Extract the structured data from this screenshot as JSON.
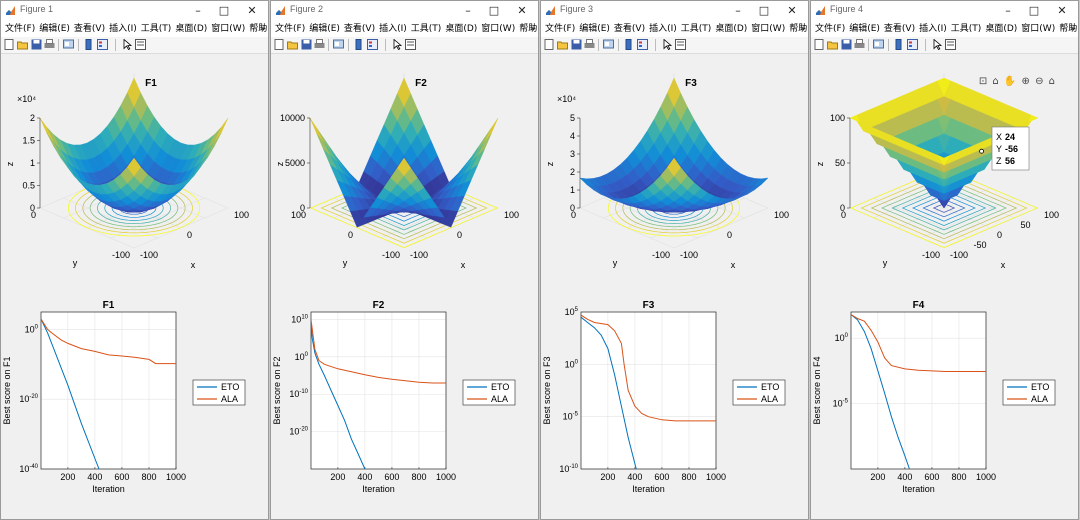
{
  "windows": [
    {
      "title": "Figure 1",
      "left": 0
    },
    {
      "title": "Figure 2",
      "left": 270
    },
    {
      "title": "Figure 3",
      "left": 540
    },
    {
      "title": "Figure 4",
      "left": 810
    }
  ],
  "menu": [
    "文件(F)",
    "编辑(E)",
    "查看(V)",
    "插入(I)",
    "工具(T)",
    "桌面(D)",
    "窗口(W)",
    "帮助(H)"
  ],
  "menu_more": "»",
  "window_buttons": {
    "minimize": "–",
    "maximize": "□",
    "close": "✕"
  },
  "figures": [
    {
      "id": "F1",
      "surface": {
        "title": "F1",
        "xlabel": "x",
        "ylabel": "y",
        "zlabel": "z",
        "zexp": "×10⁴",
        "zticks": [
          "0",
          "0.5",
          "1",
          "1.5",
          "2"
        ],
        "xticks": [
          "-100",
          "0",
          "100"
        ],
        "yticks": [
          "-100",
          "0"
        ]
      },
      "convergence": {
        "title": "F1",
        "xlabel": "Iteration",
        "ylabel": "Best score on F1",
        "xticks": [
          "200",
          "400",
          "600",
          "800",
          "1000"
        ],
        "yticks": [
          {
            "b": "10",
            "e": "0"
          },
          {
            "b": "10",
            "e": "-20"
          },
          {
            "b": "10",
            "e": "-40"
          }
        ]
      }
    },
    {
      "id": "F2",
      "surface": {
        "title": "F2",
        "xlabel": "x",
        "ylabel": "y",
        "zlabel": "z",
        "zexp": "",
        "zticks": [
          "0",
          "5000",
          "10000"
        ],
        "xticks": [
          "-100",
          "0",
          "100"
        ],
        "yticks": [
          "-100",
          "0",
          "100"
        ]
      },
      "convergence": {
        "title": "F2",
        "xlabel": "Iteration",
        "ylabel": "Best score on F2",
        "xticks": [
          "200",
          "400",
          "600",
          "800",
          "1000"
        ],
        "yticks": [
          {
            "b": "10",
            "e": "10"
          },
          {
            "b": "10",
            "e": "0"
          },
          {
            "b": "10",
            "e": "-10"
          },
          {
            "b": "10",
            "e": "-20"
          }
        ]
      }
    },
    {
      "id": "F3",
      "surface": {
        "title": "F3",
        "xlabel": "x",
        "ylabel": "y",
        "zlabel": "z",
        "zexp": "×10⁴",
        "zticks": [
          "0",
          "1",
          "2",
          "3",
          "4",
          "5"
        ],
        "xticks": [
          "-100",
          "0",
          "100"
        ],
        "yticks": [
          "-100",
          "0"
        ]
      },
      "convergence": {
        "title": "F3",
        "xlabel": "Iteration",
        "ylabel": "Best score on F3",
        "xticks": [
          "200",
          "400",
          "600",
          "800",
          "1000"
        ],
        "yticks": [
          {
            "b": "10",
            "e": "5"
          },
          {
            "b": "10",
            "e": "0"
          },
          {
            "b": "10",
            "e": "-5"
          },
          {
            "b": "10",
            "e": "-10"
          }
        ]
      }
    },
    {
      "id": "F4",
      "surface": {
        "title": "",
        "xlabel": "x",
        "ylabel": "y",
        "zlabel": "z",
        "zexp": "",
        "zticks": [
          "0",
          "50",
          "100"
        ],
        "xticks": [
          "-100",
          "-50",
          "0",
          "50",
          "100"
        ],
        "yticks": [
          "-100",
          "0"
        ]
      },
      "datatip": {
        "x_label": "X",
        "x_value": "24",
        "y_label": "Y",
        "y_value": "-56",
        "z_label": "Z",
        "z_value": "56"
      },
      "axes_toolbar": "⊡ ⌂ ✋ ⊕ ⊖ ⌂",
      "convergence": {
        "title": "F4",
        "xlabel": "Iteration",
        "ylabel": "Best score on F4",
        "xticks": [
          "200",
          "400",
          "600",
          "800",
          "1000"
        ],
        "yticks": [
          {
            "b": "10",
            "e": "0"
          },
          {
            "b": "10",
            "e": "-5"
          }
        ]
      }
    }
  ],
  "legend": [
    "ETO",
    "ALA"
  ],
  "colors": {
    "eto": "#0072BD",
    "ala": "#D95319",
    "grid": "#e3e3e3"
  },
  "chart_data": [
    {
      "type": "line",
      "title": "F1",
      "xlabel": "Iteration",
      "ylabel": "Best score on F1",
      "yscale": "log",
      "xlim": [
        1,
        1000
      ],
      "ylim_exp": [
        -40,
        5
      ],
      "series": [
        {
          "name": "ETO",
          "x": [
            1,
            50,
            100,
            200,
            300,
            400,
            450
          ],
          "y_exp": [
            3,
            -1,
            -6,
            -16,
            -27,
            -37,
            -42
          ]
        },
        {
          "name": "ALA",
          "x": [
            1,
            50,
            80,
            150,
            200,
            300,
            400,
            500,
            600,
            700,
            800,
            850,
            1000
          ],
          "y_exp": [
            3,
            0,
            -1,
            -3,
            -4,
            -5.5,
            -6.3,
            -7.3,
            -7.6,
            -8,
            -8.6,
            -9.8,
            -9.8
          ]
        }
      ]
    },
    {
      "type": "line",
      "title": "F2",
      "xlabel": "Iteration",
      "ylabel": "Best score on F2",
      "yscale": "log",
      "xlim": [
        1,
        1000
      ],
      "ylim_exp": [
        -30,
        12
      ],
      "series": [
        {
          "name": "ETO",
          "x": [
            1,
            10,
            30,
            60,
            100,
            150,
            200,
            250,
            300,
            350,
            400,
            450
          ],
          "y_exp": [
            9,
            5,
            1,
            -2,
            -5,
            -9,
            -13,
            -17,
            -22,
            -26,
            -30,
            -33
          ]
        },
        {
          "name": "ALA",
          "x": [
            1,
            30,
            60,
            100,
            200,
            300,
            400,
            500,
            600,
            700,
            800,
            900,
            1000
          ],
          "y_exp": [
            10,
            2,
            -1,
            -2,
            -3.2,
            -4,
            -4.8,
            -5.5,
            -6,
            -6.4,
            -6.8,
            -7,
            -7
          ]
        }
      ]
    },
    {
      "type": "line",
      "title": "F3",
      "xlabel": "Iteration",
      "ylabel": "Best score on F3",
      "yscale": "log",
      "xlim": [
        1,
        1000
      ],
      "ylim_exp": [
        -10,
        5
      ],
      "series": [
        {
          "name": "ETO",
          "x": [
            1,
            50,
            100,
            150,
            200,
            250,
            300,
            350,
            400,
            430
          ],
          "y_exp": [
            4.5,
            4,
            3.5,
            2.8,
            1.5,
            -1,
            -4,
            -7,
            -9.5,
            -11
          ]
        },
        {
          "name": "ALA",
          "x": [
            1,
            50,
            100,
            200,
            250,
            300,
            320,
            350,
            400,
            450,
            500,
            600,
            700,
            800,
            1000
          ],
          "y_exp": [
            4.7,
            4.3,
            4,
            3.8,
            3.2,
            2,
            0,
            -2.5,
            -4,
            -4.7,
            -5,
            -5.3,
            -5.4,
            -5.4,
            -5.4
          ]
        }
      ]
    },
    {
      "type": "line",
      "title": "F4",
      "xlabel": "Iteration",
      "ylabel": "Best score on F4",
      "yscale": "log",
      "xlim": [
        1,
        1000
      ],
      "ylim_exp": [
        -10,
        2
      ],
      "series": [
        {
          "name": "ETO",
          "x": [
            1,
            50,
            100,
            150,
            200,
            250,
            300,
            350,
            400,
            450
          ],
          "y_exp": [
            1.8,
            1.4,
            0.5,
            -0.8,
            -2.5,
            -4.2,
            -6,
            -7.6,
            -9,
            -10.5
          ]
        },
        {
          "name": "ALA",
          "x": [
            1,
            50,
            100,
            150,
            200,
            250,
            300,
            400,
            500,
            600,
            700,
            800,
            1000
          ],
          "y_exp": [
            1.8,
            1.5,
            1.3,
            0.6,
            -0.3,
            -1.5,
            -2.1,
            -2.35,
            -2.45,
            -2.5,
            -2.55,
            -2.55,
            -2.55
          ]
        }
      ]
    }
  ]
}
